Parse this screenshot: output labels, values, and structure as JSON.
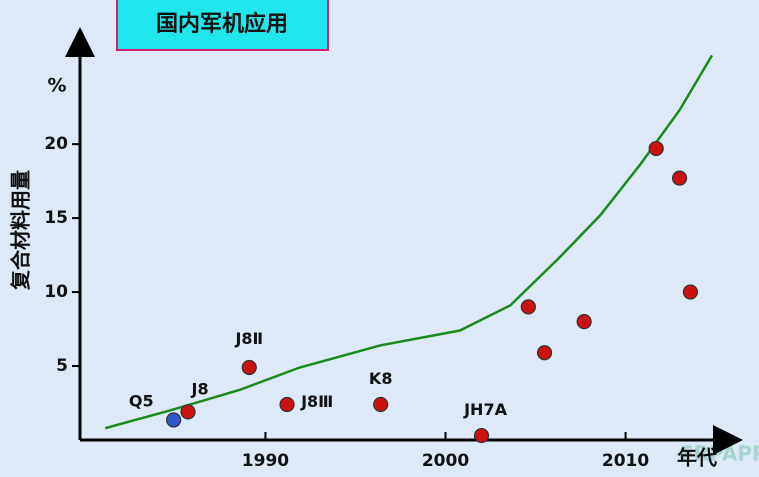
{
  "chart_data": {
    "type": "scatter",
    "title": "国内军机应用",
    "y_label": "复合材料用量",
    "y_unit": "%",
    "x_label": "年代",
    "watermark": "FRPAPP.COM",
    "xlim": [
      1979.7,
      2015.8
    ],
    "xticks": [
      1990,
      2000,
      2010
    ],
    "ylim": [
      0,
      26.7
    ],
    "yticks": [
      5,
      10,
      15,
      20
    ],
    "points": {
      "x": [
        1984.9,
        1985.7,
        1989.1,
        1991.2,
        1996.4,
        2002.0,
        2004.6,
        2005.5,
        2007.7,
        2011.7,
        2013.0,
        2013.6
      ],
      "values": [
        1.35,
        1.9,
        4.9,
        2.4,
        2.4,
        0.3,
        9.0,
        5.9,
        8.0,
        19.7,
        17.7,
        10.0
      ],
      "labels": [
        "Q5",
        "J8",
        "J8Ⅱ",
        "J8Ⅲ",
        "K8",
        "JH7A",
        null,
        null,
        null,
        null,
        null,
        null
      ],
      "colors": [
        "#3355cc",
        "#cc1111",
        "#cc1111",
        "#cc1111",
        "#cc1111",
        "#cc1111",
        "#cc1111",
        "#cc1111",
        "#cc1111",
        "#cc1111",
        "#cc1111",
        "#cc1111"
      ]
    },
    "trend": {
      "color": "#1a8a1a",
      "x": [
        1981.1,
        1984.7,
        1988.6,
        1991.9,
        1996.4,
        2000.8,
        2003.6,
        2006.3,
        2008.6,
        2010.8,
        2013.0,
        2014.8
      ],
      "values": [
        0.8,
        2.0,
        3.4,
        4.9,
        6.4,
        7.4,
        9.1,
        12.3,
        15.2,
        18.6,
        22.3,
        26.0
      ]
    }
  }
}
